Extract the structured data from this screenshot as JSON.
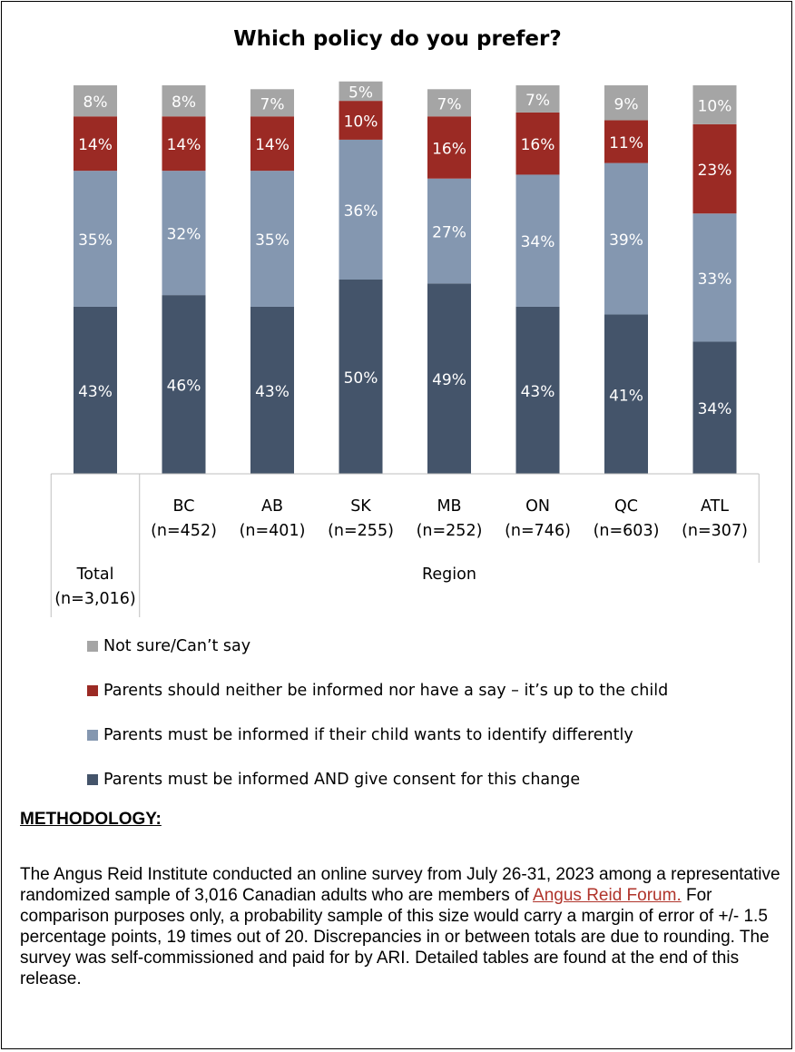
{
  "chart_data": {
    "type": "bar",
    "stacked": true,
    "title": "Which policy do you prefer?",
    "categories": [
      {
        "name": "Total",
        "n": "(n=3,016)"
      },
      {
        "name": "BC",
        "n": "(n=452)"
      },
      {
        "name": "AB",
        "n": "(n=401)"
      },
      {
        "name": "SK",
        "n": "(n=255)"
      },
      {
        "name": "MB",
        "n": "(n=252)"
      },
      {
        "name": "ON",
        "n": "(n=746)"
      },
      {
        "name": "QC",
        "n": "(n=603)"
      },
      {
        "name": "ATL",
        "n": "(n=307)"
      }
    ],
    "group_label": "Region",
    "series": [
      {
        "name": "Parents must be informed AND give consent for this change",
        "color": "#44546a",
        "values": [
          43,
          46,
          43,
          50,
          49,
          43,
          41,
          34
        ]
      },
      {
        "name": "Parents must be informed if their child wants to identify differently",
        "color": "#8497b0",
        "values": [
          35,
          32,
          35,
          36,
          27,
          34,
          39,
          33
        ]
      },
      {
        "name": "Parents should neither be informed nor have a say – it’s up to the child",
        "color": "#9b2a24",
        "values": [
          14,
          14,
          14,
          10,
          16,
          16,
          11,
          23
        ]
      },
      {
        "name": "Not sure/Can’t say",
        "color": "#a5a5a5",
        "values": [
          8,
          8,
          7,
          5,
          7,
          7,
          9,
          10
        ]
      }
    ],
    "legend_order": [
      3,
      2,
      1,
      0
    ],
    "legend_position": "bottom",
    "ylim": [
      0,
      100
    ]
  },
  "methodology": {
    "heading": "METHODOLOGY:",
    "text_before_link": "The Angus Reid Institute conducted an online survey from July 26-31, 2023 among a representative randomized sample of 3,016 Canadian adults who are members of ",
    "link_text": "Angus Reid Forum.",
    "text_after_link": " For comparison purposes only, a probability sample of this size would carry a margin of error of +/- 1.5 percentage points, 19 times out of 20. Discrepancies in or between totals are due to rounding. The survey was self-commissioned and paid for by ARI. Detailed tables are found at the end of this release."
  }
}
